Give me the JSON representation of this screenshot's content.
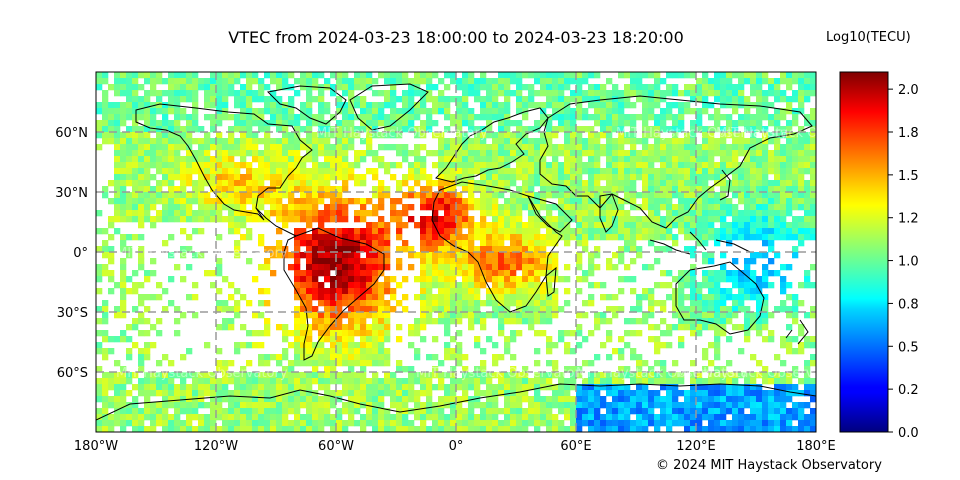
{
  "figure": {
    "title": "VTEC from 2024-03-23 18:00:00 to 2024-03-23 18:20:00",
    "colorbar_label": "Log10(TECU)",
    "credit": "© 2024 MIT Haystack Observatory",
    "watermark": "MIT Haystack Observatory"
  },
  "chart_data": {
    "type": "heatmap",
    "title": "VTEC from 2024-03-23 18:00:00 to 2024-03-23 18:20:00",
    "projection": "plate-carree",
    "xlim": [
      -180,
      180
    ],
    "ylim": [
      -90,
      90
    ],
    "x_ticks": [
      {
        "value": -180,
        "label": "180°W"
      },
      {
        "value": -120,
        "label": "120°W"
      },
      {
        "value": -60,
        "label": "60°W"
      },
      {
        "value": 0,
        "label": "0°"
      },
      {
        "value": 60,
        "label": "60°E"
      },
      {
        "value": 120,
        "label": "120°E"
      },
      {
        "value": 180,
        "label": "180°E"
      }
    ],
    "y_ticks": [
      {
        "value": 60,
        "label": "60°N"
      },
      {
        "value": 30,
        "label": "30°N"
      },
      {
        "value": 0,
        "label": "0°"
      },
      {
        "value": -30,
        "label": "30°S"
      },
      {
        "value": -60,
        "label": "60°S"
      }
    ],
    "grid": true,
    "colormap": "jet",
    "colorbar": {
      "label": "Log10(TECU)",
      "range": [
        0.0,
        2.1
      ],
      "ticks": [
        {
          "value": 0.0,
          "label": "0.0"
        },
        {
          "value": 0.25,
          "label": "0.2"
        },
        {
          "value": 0.5,
          "label": "0.5"
        },
        {
          "value": 0.75,
          "label": "0.8"
        },
        {
          "value": 1.0,
          "label": "1.0"
        },
        {
          "value": 1.25,
          "label": "1.2"
        },
        {
          "value": 1.5,
          "label": "1.5"
        },
        {
          "value": 1.75,
          "label": "1.8"
        },
        {
          "value": 2.0,
          "label": "2.0"
        }
      ]
    },
    "cell_size_deg": 3,
    "peak_regions": [
      {
        "region": "South America / Atlantic",
        "lon": -60,
        "lat": -5,
        "log10_tec": 2.05
      },
      {
        "region": "West Africa",
        "lon": -10,
        "lat": 20,
        "log10_tec": 1.95
      },
      {
        "region": "Central Africa",
        "lon": 25,
        "lat": -5,
        "log10_tec": 1.75
      }
    ],
    "minimum_regions": [
      {
        "region": "Western Pacific / Australia",
        "lon": 150,
        "lat": -10,
        "log10_tec": 0.6
      },
      {
        "region": "Southern Ocean / Antarctica",
        "lon": 120,
        "lat": -80,
        "log10_tec": 0.4
      }
    ]
  }
}
